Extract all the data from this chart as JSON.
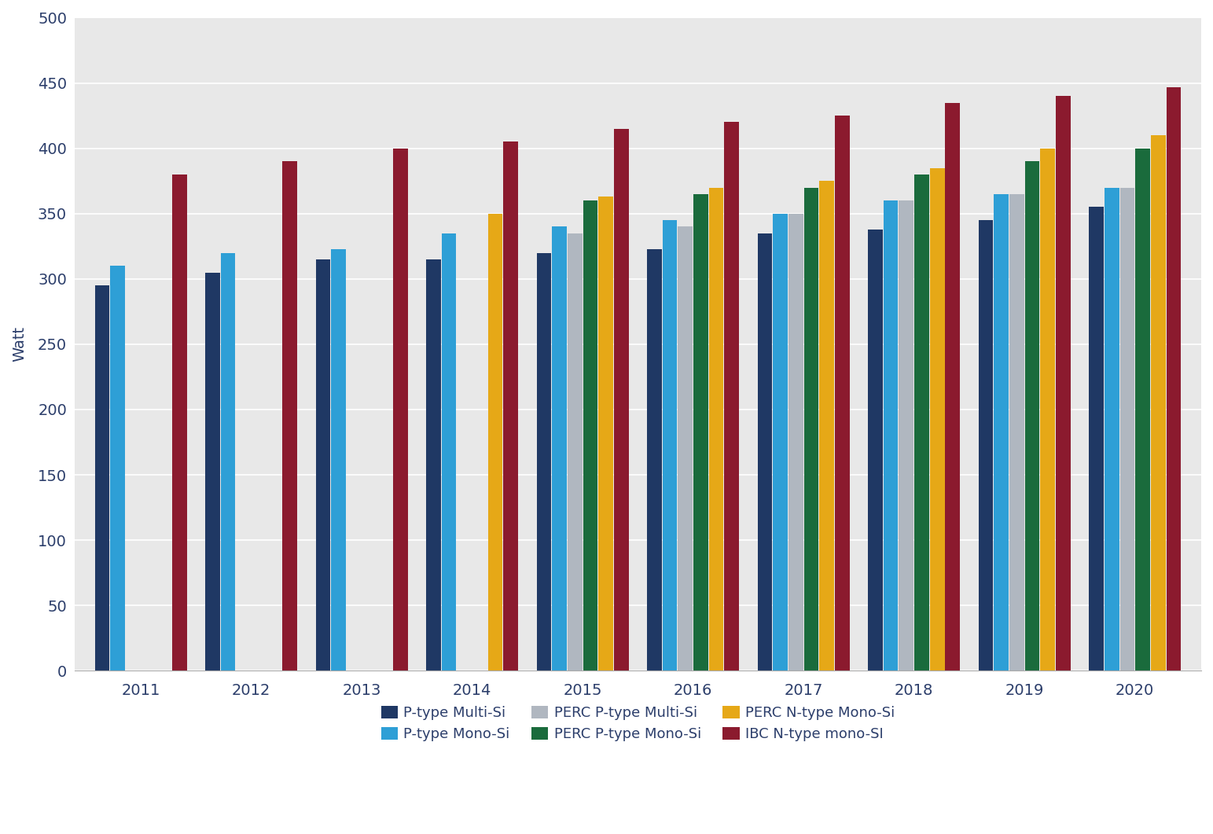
{
  "years": [
    2011,
    2012,
    2013,
    2014,
    2015,
    2016,
    2017,
    2018,
    2019,
    2020
  ],
  "series": [
    {
      "name": "P-type Multi-Si",
      "values": [
        295,
        305,
        315,
        315,
        320,
        323,
        335,
        338,
        345,
        355
      ],
      "color": "#1f3864"
    },
    {
      "name": "P-type Mono-Si",
      "values": [
        310,
        320,
        323,
        335,
        340,
        345,
        350,
        360,
        365,
        370
      ],
      "color": "#2e9fd6"
    },
    {
      "name": "PERC P-type Multi-Si",
      "values": [
        null,
        null,
        null,
        null,
        335,
        340,
        350,
        360,
        365,
        370
      ],
      "color": "#b0b7c0"
    },
    {
      "name": "PERC P-type Mono-Si",
      "values": [
        null,
        null,
        null,
        null,
        360,
        365,
        370,
        380,
        390,
        400
      ],
      "color": "#1a6b3c"
    },
    {
      "name": "PERC N-type Mono-Si",
      "values": [
        null,
        null,
        null,
        350,
        363,
        370,
        375,
        385,
        400,
        410
      ],
      "color": "#e6a817"
    },
    {
      "name": "IBC N-type mono-SI",
      "values": [
        380,
        390,
        400,
        405,
        415,
        420,
        425,
        435,
        440,
        447
      ],
      "color": "#8b1a2e"
    }
  ],
  "ylabel": "Watt",
  "ylim": [
    0,
    500
  ],
  "yticks": [
    0,
    50,
    100,
    150,
    200,
    250,
    300,
    350,
    400,
    450,
    500
  ],
  "plot_bg_color": "#e8e8e8",
  "fig_bg_color": "#ffffff",
  "bar_width": 0.14,
  "group_width": 0.85
}
